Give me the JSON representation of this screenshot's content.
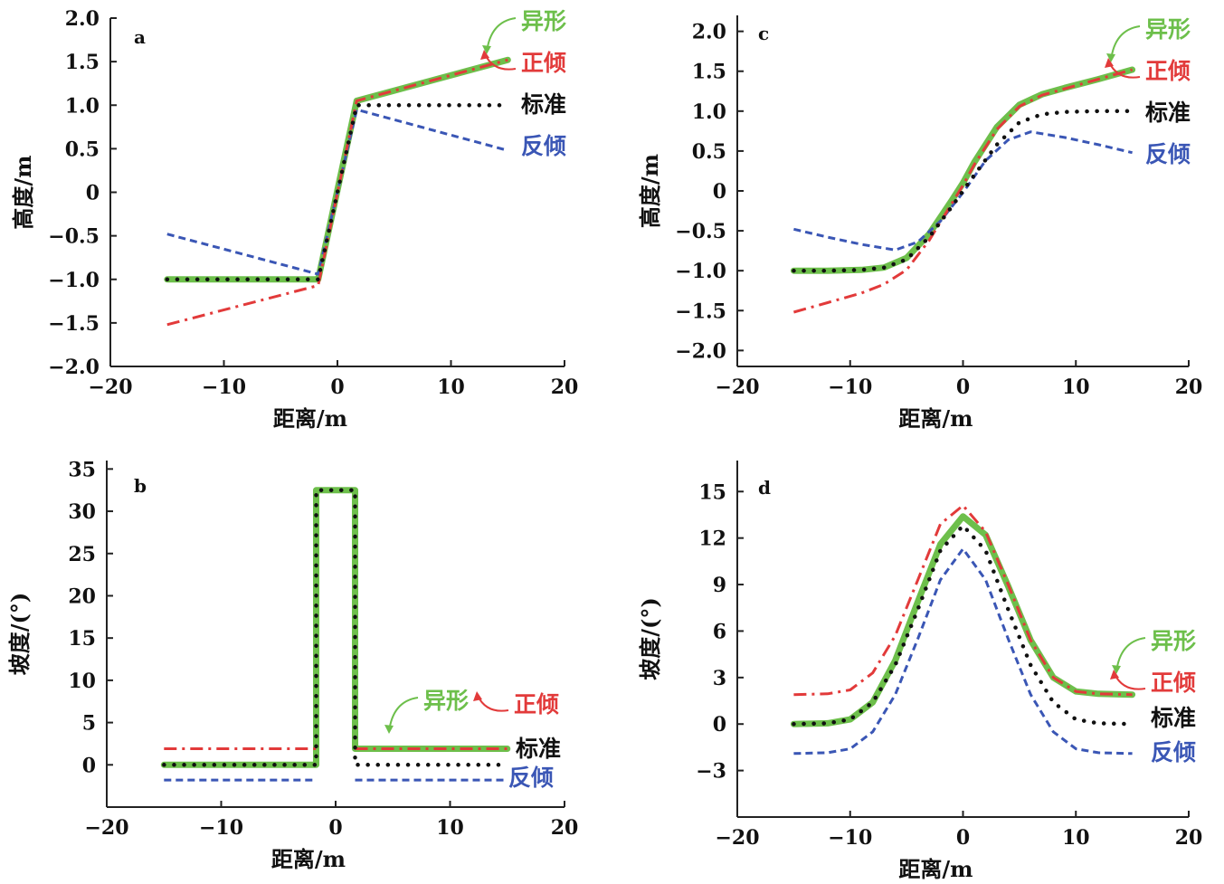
{
  "colors": {
    "yixing": "#6dbf4b",
    "zhengqing": "#e23a3a",
    "biaozhun": "#111111",
    "fanqing": "#3a56b5"
  },
  "chart_data": [
    {
      "id": "a",
      "type": "line",
      "panel_label": "a",
      "xlabel": "距离/m",
      "ylabel": "高度/m",
      "xlim": [
        -20,
        20
      ],
      "ylim": [
        -2,
        2
      ],
      "xticks": [
        -20,
        -10,
        0,
        10,
        20
      ],
      "xtick_labels": [
        "−20",
        "−10",
        "0",
        "10",
        "20"
      ],
      "yticks": [
        -2,
        -1.5,
        -1,
        -0.5,
        0,
        0.5,
        1,
        1.5,
        2
      ],
      "ytick_labels": [
        "−2.0",
        "−1.5",
        "−1.0",
        "−0.5",
        "0",
        "0.5",
        "1.0",
        "1.5",
        "2.0"
      ],
      "series": [
        {
          "name": "反倾",
          "style": "dash",
          "x": [
            -15,
            -1.7,
            1.7,
            15
          ],
          "y": [
            -0.48,
            -0.94,
            0.95,
            0.48
          ]
        },
        {
          "name": "标准",
          "style": "dot",
          "x": [
            -15,
            -1.7,
            1.7,
            15
          ],
          "y": [
            -1.0,
            -1.0,
            1.0,
            1.0
          ]
        },
        {
          "name": "异形",
          "style": "solid",
          "x": [
            -15,
            -1.7,
            1.7,
            15
          ],
          "y": [
            -1.0,
            -1.0,
            1.05,
            1.52
          ]
        },
        {
          "name": "正倾",
          "style": "dashdot",
          "x": [
            -15,
            -1.7,
            1.7,
            15
          ],
          "y": [
            -1.52,
            -1.07,
            1.05,
            1.52
          ]
        }
      ],
      "legend": [
        {
          "name": "异形",
          "color_key": "yixing",
          "arrow": "green"
        },
        {
          "name": "正倾",
          "color_key": "zhengqing",
          "arrow": "red"
        },
        {
          "name": "标准",
          "color_key": "biaozhun",
          "arrow": "none"
        },
        {
          "name": "反倾",
          "color_key": "fanqing",
          "arrow": "none"
        }
      ]
    },
    {
      "id": "b",
      "type": "line",
      "panel_label": "b",
      "xlabel": "距离/m",
      "ylabel": "坡度/(°)",
      "xlim": [
        -20,
        20
      ],
      "ylim": [
        -5,
        36
      ],
      "xticks": [
        -20,
        -10,
        0,
        10,
        20
      ],
      "xtick_labels": [
        "−20",
        "−10",
        "0",
        "10",
        "20"
      ],
      "yticks": [
        0,
        5,
        10,
        15,
        20,
        25,
        30,
        35
      ],
      "ytick_labels": [
        "0",
        "5",
        "10",
        "15",
        "20",
        "25",
        "30",
        "35"
      ],
      "series": [
        {
          "name": "反倾",
          "style": "dash",
          "x": [
            -15,
            -1.7,
            null,
            1.7,
            15
          ],
          "y": [
            -1.8,
            -1.8,
            null,
            -1.8,
            -1.8
          ]
        },
        {
          "name": "标准",
          "style": "dot",
          "x": [
            -15,
            -1.7,
            -1.7,
            1.7,
            1.7,
            15
          ],
          "y": [
            0,
            0,
            32.5,
            32.5,
            0,
            0
          ]
        },
        {
          "name": "异形",
          "style": "solid",
          "x": [
            -15,
            -1.7,
            -1.7,
            1.7,
            1.7,
            15
          ],
          "y": [
            0,
            0,
            32.5,
            32.5,
            1.9,
            1.9
          ]
        },
        {
          "name": "正倾",
          "style": "dashdot",
          "x": [
            -15,
            -1.7,
            null,
            1.7,
            15
          ],
          "y": [
            1.9,
            1.9,
            null,
            1.9,
            1.9
          ]
        }
      ],
      "legend": [
        {
          "name": "异形",
          "color_key": "yixing",
          "arrow": "green"
        },
        {
          "name": "正倾",
          "color_key": "zhengqing",
          "arrow": "red"
        },
        {
          "name": "标准",
          "color_key": "biaozhun",
          "arrow": "none"
        },
        {
          "name": "反倾",
          "color_key": "fanqing",
          "arrow": "none"
        }
      ]
    },
    {
      "id": "c",
      "type": "line",
      "panel_label": "c",
      "xlabel": "距离/m",
      "ylabel": "高度/m",
      "xlim": [
        -20,
        20
      ],
      "ylim": [
        -2.2,
        2.2
      ],
      "xticks": [
        -20,
        -10,
        0,
        10,
        20
      ],
      "xtick_labels": [
        "−20",
        "−10",
        "0",
        "10",
        "20"
      ],
      "yticks": [
        -2,
        -1.5,
        -1,
        -0.5,
        0,
        0.5,
        1,
        1.5,
        2
      ],
      "ytick_labels": [
        "−2.0",
        "−1.5",
        "−1.0",
        "−0.5",
        "0",
        "0.5",
        "1.0",
        "1.5",
        "2.0"
      ],
      "series": [
        {
          "name": "反倾",
          "style": "dash",
          "x": [
            -15,
            -12,
            -9,
            -6,
            -4,
            -2,
            0,
            2,
            4,
            6,
            9,
            12,
            15
          ],
          "y": [
            -0.48,
            -0.58,
            -0.67,
            -0.74,
            -0.64,
            -0.38,
            -0.02,
            0.38,
            0.64,
            0.74,
            0.67,
            0.58,
            0.48
          ]
        },
        {
          "name": "标准",
          "style": "dot",
          "x": [
            -15,
            -12,
            -9,
            -7,
            -5,
            -3,
            -1,
            0,
            1,
            3,
            5,
            7,
            9,
            12,
            15
          ],
          "y": [
            -1.0,
            -1.0,
            -0.99,
            -0.96,
            -0.86,
            -0.58,
            -0.2,
            0.0,
            0.2,
            0.58,
            0.86,
            0.96,
            0.99,
            1.0,
            1.0
          ]
        },
        {
          "name": "异形",
          "style": "solid",
          "x": [
            -15,
            -12,
            -9,
            -7,
            -5,
            -3,
            -1,
            0,
            1,
            3,
            5,
            7,
            9,
            12,
            15
          ],
          "y": [
            -1.0,
            -1.0,
            -0.99,
            -0.96,
            -0.84,
            -0.54,
            -0.12,
            0.1,
            0.36,
            0.8,
            1.08,
            1.21,
            1.29,
            1.4,
            1.52
          ]
        },
        {
          "name": "正倾",
          "style": "dashdot",
          "x": [
            -15,
            -12,
            -9,
            -7,
            -5,
            -3,
            -1,
            0,
            1,
            3,
            5,
            7,
            9,
            12,
            15
          ],
          "y": [
            -1.52,
            -1.4,
            -1.28,
            -1.17,
            -0.99,
            -0.62,
            -0.16,
            0.07,
            0.33,
            0.77,
            1.06,
            1.2,
            1.28,
            1.4,
            1.52
          ]
        }
      ],
      "legend": [
        {
          "name": "异形",
          "color_key": "yixing",
          "arrow": "green"
        },
        {
          "name": "正倾",
          "color_key": "zhengqing",
          "arrow": "red"
        },
        {
          "name": "标准",
          "color_key": "biaozhun",
          "arrow": "none"
        },
        {
          "name": "反倾",
          "color_key": "fanqing",
          "arrow": "none"
        }
      ]
    },
    {
      "id": "d",
      "type": "line",
      "panel_label": "d",
      "xlabel": "距离/m",
      "ylabel": "坡度/(°)",
      "xlim": [
        -20,
        20
      ],
      "ylim": [
        -6,
        17
      ],
      "xticks": [
        -20,
        -10,
        0,
        10,
        20
      ],
      "xtick_labels": [
        "−20",
        "−10",
        "0",
        "10",
        "20"
      ],
      "yticks": [
        -3,
        0,
        3,
        6,
        9,
        12,
        15
      ],
      "ytick_labels": [
        "−3",
        "0",
        "3",
        "6",
        "9",
        "12",
        "15"
      ],
      "series": [
        {
          "name": "反倾",
          "style": "dash",
          "x": [
            -15,
            -12,
            -10,
            -8,
            -6,
            -4,
            -2,
            0,
            2,
            4,
            6,
            8,
            10,
            12,
            15
          ],
          "y": [
            -1.9,
            -1.85,
            -1.6,
            -0.5,
            1.9,
            5.5,
            9.3,
            11.3,
            9.3,
            5.5,
            1.9,
            -0.5,
            -1.6,
            -1.85,
            -1.9
          ]
        },
        {
          "name": "标准",
          "style": "dot",
          "x": [
            -15,
            -12,
            -10,
            -8,
            -6,
            -4,
            -2,
            0,
            2,
            4,
            6,
            8,
            10,
            12,
            15
          ],
          "y": [
            0,
            0.05,
            0.3,
            1.4,
            3.8,
            7.4,
            11.2,
            12.8,
            11.2,
            7.4,
            3.8,
            1.4,
            0.3,
            0.05,
            0
          ]
        },
        {
          "name": "异形",
          "style": "solid",
          "x": [
            -15,
            -12,
            -10,
            -8,
            -6,
            -4,
            -2,
            0,
            2,
            4,
            6,
            8,
            10,
            12,
            15
          ],
          "y": [
            0,
            0.05,
            0.3,
            1.4,
            4.1,
            7.9,
            11.6,
            13.4,
            12.2,
            8.9,
            5.4,
            3.0,
            2.1,
            1.95,
            1.9
          ]
        },
        {
          "name": "正倾",
          "style": "dashdot",
          "x": [
            -15,
            -12,
            -10,
            -8,
            -6,
            -4,
            -2,
            0,
            2,
            4,
            6,
            8,
            10,
            12,
            15
          ],
          "y": [
            1.9,
            1.95,
            2.2,
            3.3,
            5.7,
            9.3,
            12.9,
            14.1,
            12.4,
            9.0,
            5.4,
            3.0,
            2.1,
            1.95,
            1.9
          ]
        }
      ],
      "legend": [
        {
          "name": "异形",
          "color_key": "yixing",
          "arrow": "green"
        },
        {
          "name": "正倾",
          "color_key": "zhengqing",
          "arrow": "red"
        },
        {
          "name": "标准",
          "color_key": "biaozhun",
          "arrow": "none"
        },
        {
          "name": "反倾",
          "color_key": "fanqing",
          "arrow": "none"
        }
      ]
    }
  ]
}
